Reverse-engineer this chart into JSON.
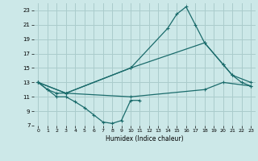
{
  "bg_color": "#cce8e8",
  "grid_color": "#aacccc",
  "line_color": "#1a6b6b",
  "xlabel": "Humidex (Indice chaleur)",
  "xlim": [
    -0.5,
    23.5
  ],
  "ylim": [
    7,
    24
  ],
  "yticks": [
    7,
    9,
    11,
    13,
    15,
    17,
    19,
    21,
    23
  ],
  "xticks": [
    0,
    1,
    2,
    3,
    4,
    5,
    6,
    7,
    8,
    9,
    10,
    11,
    12,
    13,
    14,
    15,
    16,
    17,
    18,
    19,
    20,
    21,
    22,
    23
  ],
  "series1_x": [
    0,
    1,
    2,
    3,
    4,
    5,
    6,
    7,
    8,
    9,
    10,
    11
  ],
  "series1_y": [
    13,
    12,
    11,
    11,
    10.3,
    9.5,
    8.5,
    7.5,
    7.3,
    7.7,
    10.5,
    10.5
  ],
  "series2_x": [
    0,
    1,
    2,
    3,
    10,
    14,
    15,
    16,
    17,
    18,
    20,
    21,
    22,
    23
  ],
  "series2_y": [
    13,
    12,
    11.5,
    11.5,
    15,
    20.5,
    22.5,
    23.5,
    21,
    18.5,
    15.5,
    14,
    13,
    12.5
  ],
  "series3_x": [
    0,
    3,
    10,
    18,
    20,
    21,
    23
  ],
  "series3_y": [
    13,
    11.5,
    15,
    18.5,
    15.5,
    14,
    13
  ],
  "series4_x": [
    0,
    3,
    10,
    18,
    20,
    23
  ],
  "series4_y": [
    13,
    11.5,
    11,
    12,
    13,
    12.5
  ]
}
